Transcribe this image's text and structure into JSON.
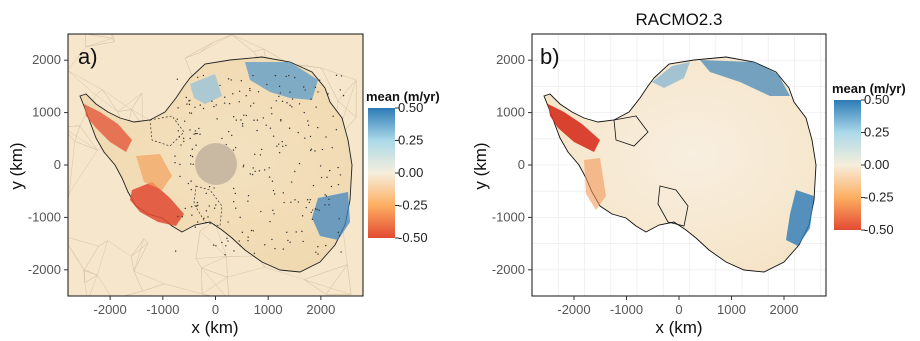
{
  "chart_data": [
    {
      "type": "heatmap",
      "panel_label": "a)",
      "title": "",
      "xlabel": "x (km)",
      "ylabel": "y (km)",
      "xlim": [
        -2800,
        2800
      ],
      "ylim": [
        -2500,
        2500
      ],
      "x_ticks": [
        -2000,
        -1000,
        0,
        1000,
        2000
      ],
      "y_ticks": [
        2000,
        1000,
        0,
        -1000,
        -2000
      ],
      "x_tick_labels": [
        "-2000",
        "-1000",
        "0",
        "1000",
        "2000"
      ],
      "y_tick_labels": [
        "2000",
        "1000",
        "0",
        "-1000",
        "-2000"
      ],
      "colorbar": {
        "title": "mean (m/yr)",
        "ticks": [
          0.5,
          0.25,
          0.0,
          -0.25,
          -0.5
        ],
        "tick_labels": [
          "0.50",
          "0.25",
          "0.00",
          "-0.25",
          "-0.50"
        ],
        "colors": [
          "#2c7bb6",
          "#abd9e9",
          "#f6e8c3",
          "#fdae61",
          "#e34a33"
        ]
      },
      "background": "#f5e6cc",
      "features": [
        "triangular mesh",
        "observation points",
        "polar hole"
      ]
    },
    {
      "type": "heatmap",
      "panel_label": "b)",
      "title": "RACMO2.3",
      "xlabel": "x (km)",
      "ylabel": "y (km)",
      "xlim": [
        -2800,
        2800
      ],
      "ylim": [
        -2500,
        2500
      ],
      "x_ticks": [
        -2000,
        -1000,
        0,
        1000,
        2000
      ],
      "y_ticks": [
        2000,
        1000,
        0,
        -1000,
        -2000
      ],
      "x_tick_labels": [
        "-2000",
        "-1000",
        "0",
        "1000",
        "2000"
      ],
      "y_tick_labels": [
        "2000",
        "1000",
        "0",
        "-1000",
        "-2000"
      ],
      "colorbar": {
        "title": "mean (m/yr)",
        "ticks": [
          0.5,
          0.25,
          0.0,
          -0.25,
          -0.5
        ],
        "tick_labels": [
          "0.50",
          "0.25",
          "0.00",
          "-0.25",
          "-0.50"
        ],
        "colors": [
          "#2c7bb6",
          "#abd9e9",
          "#f7f0e0",
          "#fdae61",
          "#e34a33"
        ]
      },
      "background": "#ffffff",
      "grid": true
    }
  ]
}
